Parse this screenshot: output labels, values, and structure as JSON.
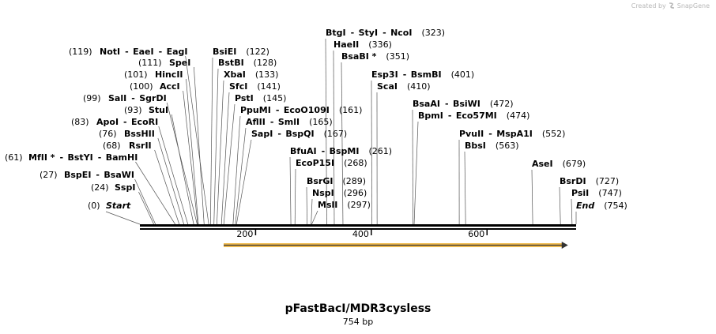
{
  "credit": {
    "prefix": "Created by",
    "brand": "SnapGene"
  },
  "title": "pFastBacI/MDR3cysless",
  "length_label": "754 bp",
  "sequence_length": 754,
  "ruler": {
    "ticks": [
      "200",
      "400",
      "600"
    ],
    "tick_positions": [
      200,
      400,
      600
    ]
  },
  "feature": {
    "start": 146,
    "end": 740,
    "color": "#f0b030"
  },
  "sites": [
    {
      "label": "(0)",
      "names": [
        "Start"
      ],
      "italic": true,
      "pos": 0
    },
    {
      "label": "(24)",
      "names": [
        "SspI"
      ],
      "pos": 24
    },
    {
      "label": "(27)",
      "names": [
        "BspEI",
        "BsaWI"
      ],
      "pos": 27
    },
    {
      "label": "(61)",
      "names": [
        "MfII *",
        "BstYI",
        "BamHI"
      ],
      "pos": 61
    },
    {
      "label": "(68)",
      "names": [
        "RsrII"
      ],
      "pos": 68
    },
    {
      "label": "(76)",
      "names": [
        "BssHII"
      ],
      "pos": 76
    },
    {
      "label": "(83)",
      "names": [
        "ApoI",
        "EcoRI"
      ],
      "pos": 83
    },
    {
      "label": "(93)",
      "names": [
        "StuI"
      ],
      "pos": 93
    },
    {
      "label": "(99)",
      "names": [
        "SalI",
        "SgrDI"
      ],
      "pos": 99
    },
    {
      "label": "(100)",
      "names": [
        "AccI"
      ],
      "pos": 100
    },
    {
      "label": "(101)",
      "names": [
        "HincII"
      ],
      "pos": 101
    },
    {
      "label": "(111)",
      "names": [
        "SpeI"
      ],
      "pos": 111
    },
    {
      "label": "(119)",
      "names": [
        "NotI",
        "EaeI",
        "EagI"
      ],
      "pos": 119
    },
    {
      "label": "(122)",
      "names": [
        "BsiEI"
      ],
      "pos": 122
    },
    {
      "label": "(128)",
      "names": [
        "BstBI"
      ],
      "pos": 128
    },
    {
      "label": "(133)",
      "names": [
        "XbaI"
      ],
      "pos": 133
    },
    {
      "label": "(141)",
      "names": [
        "SfcI"
      ],
      "pos": 141
    },
    {
      "label": "(145)",
      "names": [
        "PstI"
      ],
      "pos": 145
    },
    {
      "label": "(161)",
      "names": [
        "PpuMI",
        "EcoO109I"
      ],
      "pos": 161
    },
    {
      "label": "(165)",
      "names": [
        "AflII",
        "SmlI"
      ],
      "pos": 165
    },
    {
      "label": "(167)",
      "names": [
        "SapI",
        "BspQI"
      ],
      "pos": 167
    },
    {
      "label": "(261)",
      "names": [
        "BfuAI",
        "BspMI"
      ],
      "pos": 261
    },
    {
      "label": "(268)",
      "names": [
        "EcoP15I"
      ],
      "pos": 268
    },
    {
      "label": "(289)",
      "names": [
        "BsrGI"
      ],
      "pos": 289
    },
    {
      "label": "(296)",
      "names": [
        "NspI"
      ],
      "pos": 296
    },
    {
      "label": "(297)",
      "names": [
        "MslI"
      ],
      "pos": 297
    },
    {
      "label": "(323)",
      "names": [
        "BtgI",
        "StyI",
        "NcoI"
      ],
      "pos": 323
    },
    {
      "label": "(336)",
      "names": [
        "HaeII"
      ],
      "pos": 336
    },
    {
      "label": "(351)",
      "names": [
        "BsaBI *"
      ],
      "pos": 351
    },
    {
      "label": "(401)",
      "names": [
        "Esp3I",
        "BsmBI"
      ],
      "pos": 401
    },
    {
      "label": "(410)",
      "names": [
        "ScaI"
      ],
      "pos": 410
    },
    {
      "label": "(472)",
      "names": [
        "BsaAI",
        "BsiWI"
      ],
      "pos": 472
    },
    {
      "label": "(474)",
      "names": [
        "BpmI",
        "Eco57MI"
      ],
      "pos": 474
    },
    {
      "label": "(552)",
      "names": [
        "PvuII",
        "MspA1I"
      ],
      "pos": 552
    },
    {
      "label": "(563)",
      "names": [
        "BbsI"
      ],
      "pos": 563
    },
    {
      "label": "(679)",
      "names": [
        "AseI"
      ],
      "pos": 679
    },
    {
      "label": "(727)",
      "names": [
        "BsrDI"
      ],
      "pos": 727
    },
    {
      "label": "(747)",
      "names": [
        "PsiI"
      ],
      "pos": 747
    },
    {
      "label": "(754)",
      "names": [
        "End"
      ],
      "italic": true,
      "pos": 754
    }
  ]
}
